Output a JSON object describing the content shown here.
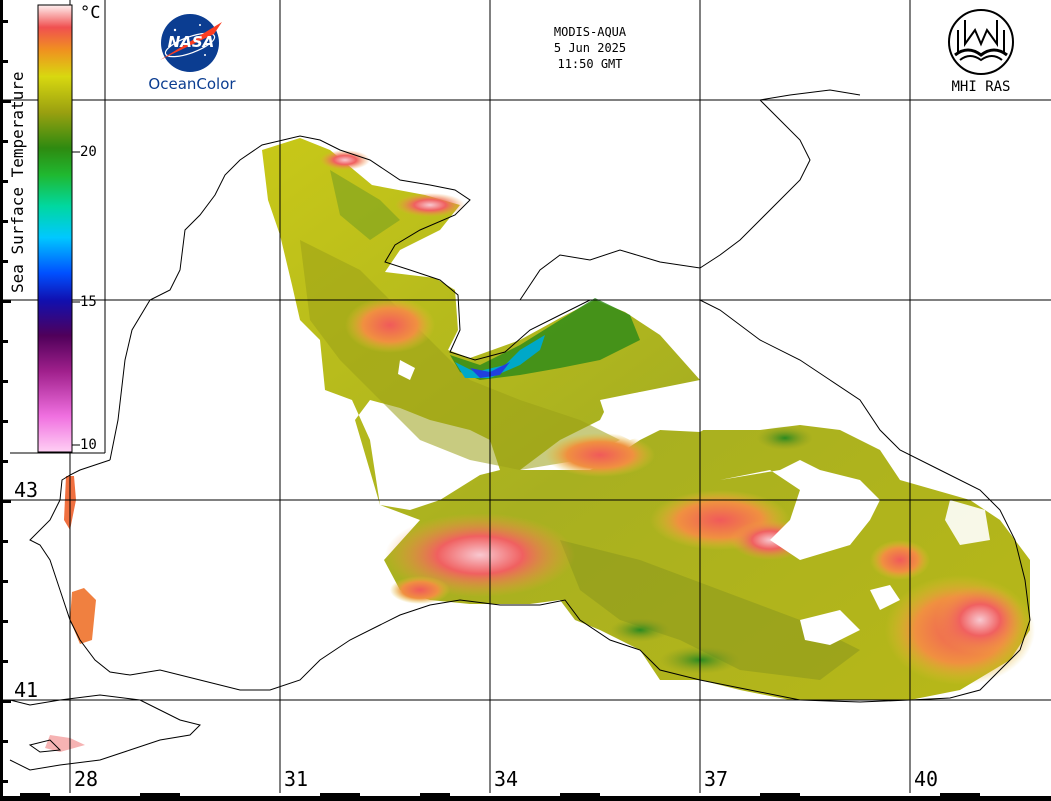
{
  "header": {
    "sensor": "MODIS-AQUA",
    "date": "5 Jun 2025",
    "time": "11:50 GMT"
  },
  "logos": {
    "nasa_text": "NASA",
    "nasa_caption": "OceanColor",
    "mhi_caption": "MHI RAS"
  },
  "colorbar": {
    "title": "Sea Surface Temperature",
    "unit": "°C",
    "ticks": [
      "20",
      "15",
      "10"
    ]
  },
  "axes": {
    "longitudes": [
      "28",
      "31",
      "34",
      "37",
      "40"
    ],
    "latitudes": [
      "43",
      "41"
    ]
  }
}
